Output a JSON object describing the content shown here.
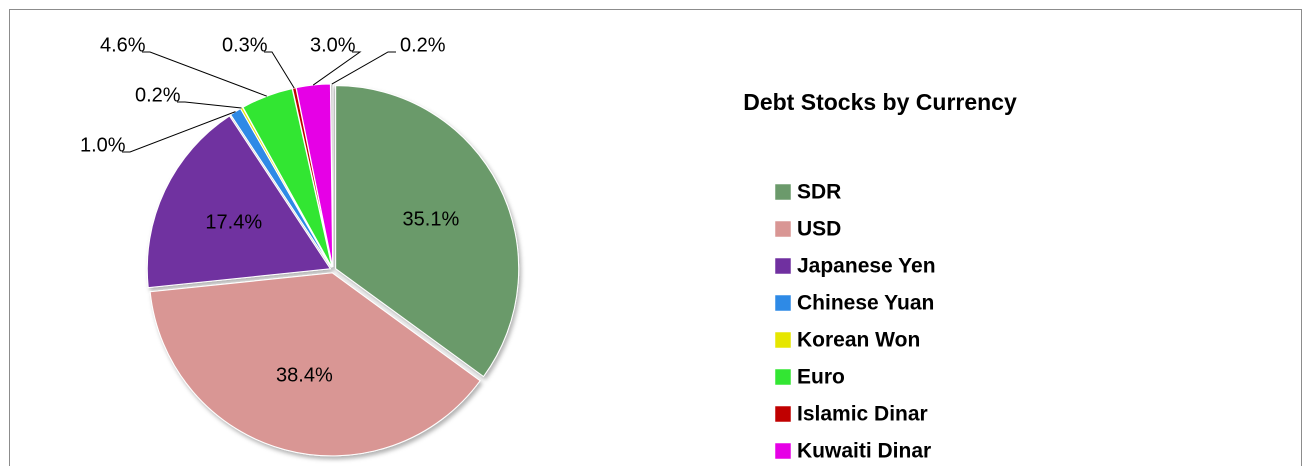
{
  "chart_data": {
    "type": "pie",
    "title": "Debt Stocks by Currency",
    "categories": [
      "SDR",
      "USD",
      "Japanese Yen",
      "Chinese Yuan",
      "Korean Won",
      "Euro",
      "Islamic Dinar",
      "Kuwaiti Dinar",
      null
    ],
    "values": [
      35.1,
      38.4,
      17.4,
      1.0,
      0.2,
      4.6,
      0.3,
      3.0,
      0.2
    ],
    "value_labels": [
      "35.1%",
      "38.4%",
      "17.4%",
      "1.0%",
      "0.2%",
      "4.6%",
      "0.3%",
      "3.0%",
      "0.2%"
    ],
    "colors": [
      "#6b9a6b",
      "#d99694",
      "#7030a0",
      "#2e8ae6",
      "#e6e600",
      "#33e633",
      "#c00000",
      "#e600e6",
      "#bfbfbf"
    ],
    "legend": "right"
  }
}
